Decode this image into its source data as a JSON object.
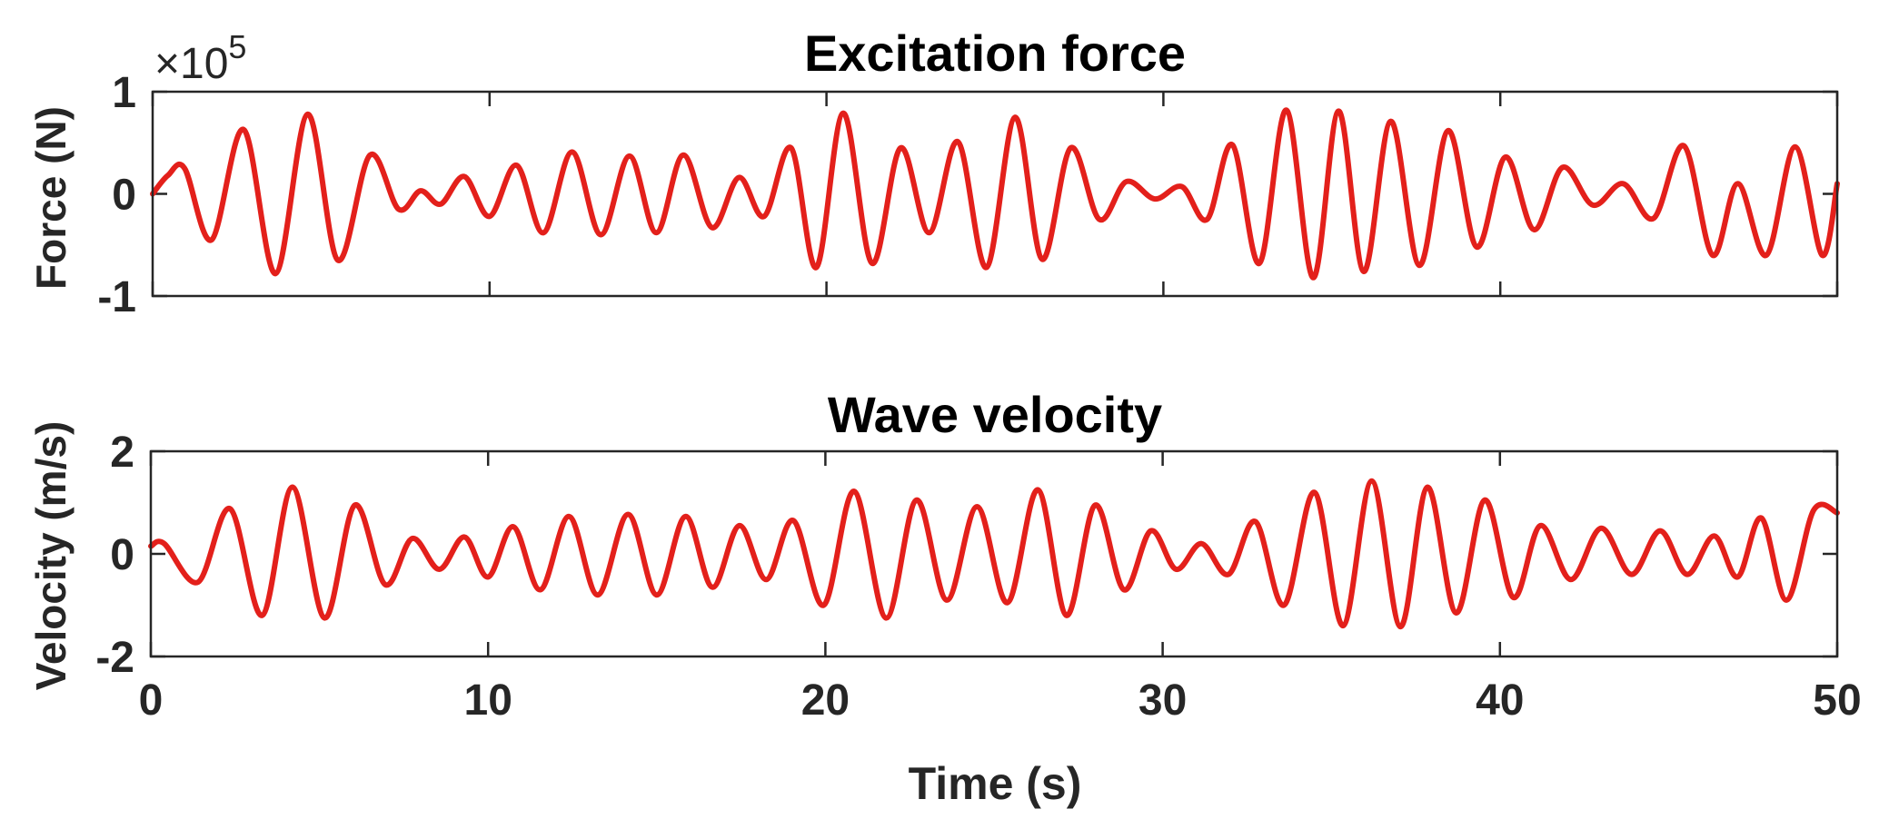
{
  "chart_data": [
    {
      "type": "line",
      "title": "Excitation force",
      "ylabel": "Force (N)",
      "xlabel": "",
      "exponent_label": "×10",
      "exponent_power": "5",
      "xlim": [
        0,
        50
      ],
      "ylim": [
        -1,
        1
      ],
      "xticks": [
        0,
        10,
        20,
        30,
        40,
        50
      ],
      "yticks": [
        -1,
        0,
        1
      ],
      "ytick_labels": [
        "-1",
        "0",
        "1"
      ],
      "grid": false,
      "line_color": "#e3201b",
      "series": [
        {
          "name": "Excitation force",
          "x": [
            0,
            0.45,
            0.95,
            1.75,
            2.7,
            3.65,
            4.6,
            5.5,
            6.45,
            7.3,
            7.95,
            8.55,
            9.25,
            10.0,
            10.8,
            11.6,
            12.45,
            13.3,
            14.15,
            14.95,
            15.75,
            16.6,
            17.4,
            18.15,
            18.95,
            19.7,
            20.5,
            21.35,
            22.2,
            23.05,
            23.9,
            24.75,
            25.6,
            26.4,
            27.25,
            28.1,
            28.9,
            29.75,
            30.55,
            31.3,
            32.05,
            32.85,
            33.65,
            34.45,
            35.2,
            35.95,
            36.75,
            37.6,
            38.45,
            39.3,
            40.15,
            41.0,
            41.85,
            42.75,
            43.65,
            44.55,
            45.45,
            46.3,
            47.05,
            47.9,
            48.75,
            49.55,
            50.0
          ],
          "y": [
            0.0,
            0.18,
            0.25,
            -0.45,
            0.63,
            -0.78,
            0.78,
            -0.65,
            0.38,
            -0.15,
            0.03,
            -0.1,
            0.17,
            -0.22,
            0.28,
            -0.38,
            0.41,
            -0.4,
            0.37,
            -0.38,
            0.38,
            -0.33,
            0.16,
            -0.22,
            0.45,
            -0.72,
            0.79,
            -0.68,
            0.45,
            -0.38,
            0.51,
            -0.72,
            0.75,
            -0.64,
            0.45,
            -0.25,
            0.12,
            -0.05,
            0.07,
            -0.25,
            0.48,
            -0.68,
            0.82,
            -0.82,
            0.81,
            -0.76,
            0.71,
            -0.7,
            0.62,
            -0.52,
            0.36,
            -0.35,
            0.26,
            -0.11,
            0.1,
            -0.24,
            0.47,
            -0.6,
            0.1,
            -0.6,
            0.46,
            -0.6,
            0.1
          ]
        }
      ]
    },
    {
      "type": "line",
      "title": "Wave velocity",
      "ylabel": "Velocity (m/s)",
      "xlabel": "Time (s)",
      "xlim": [
        0,
        50
      ],
      "ylim": [
        -2,
        2
      ],
      "xticks": [
        0,
        10,
        20,
        30,
        40,
        50
      ],
      "xtick_labels": [
        "0",
        "10",
        "20",
        "30",
        "40",
        "50"
      ],
      "yticks": [
        -2,
        0,
        2
      ],
      "ytick_labels": [
        "-2",
        "0",
        "2"
      ],
      "grid": false,
      "line_color": "#e3201b",
      "series": [
        {
          "name": "Wave velocity",
          "x": [
            0,
            0.4,
            1.4,
            2.35,
            3.3,
            4.2,
            5.15,
            6.05,
            6.95,
            7.75,
            8.55,
            9.3,
            10.0,
            10.75,
            11.55,
            12.4,
            13.25,
            14.15,
            15.0,
            15.85,
            16.65,
            17.45,
            18.25,
            19.05,
            19.95,
            20.85,
            21.8,
            22.7,
            23.6,
            24.5,
            25.4,
            26.3,
            27.15,
            28.0,
            28.85,
            29.65,
            30.4,
            31.15,
            31.95,
            32.75,
            33.6,
            34.5,
            35.35,
            36.2,
            37.05,
            37.85,
            38.7,
            39.55,
            40.4,
            41.2,
            42.1,
            43.0,
            43.9,
            44.75,
            45.55,
            46.35,
            47.05,
            47.75,
            48.5,
            49.3,
            50.0
          ],
          "y": [
            0.15,
            0.2,
            -0.55,
            0.88,
            -1.2,
            1.3,
            -1.25,
            0.95,
            -0.6,
            0.3,
            -0.3,
            0.33,
            -0.45,
            0.53,
            -0.7,
            0.73,
            -0.8,
            0.77,
            -0.8,
            0.73,
            -0.65,
            0.55,
            -0.5,
            0.65,
            -1.0,
            1.22,
            -1.25,
            1.05,
            -0.9,
            0.92,
            -0.95,
            1.25,
            -1.2,
            0.95,
            -0.7,
            0.45,
            -0.3,
            0.2,
            -0.4,
            0.63,
            -1.0,
            1.2,
            -1.4,
            1.42,
            -1.42,
            1.3,
            -1.15,
            1.05,
            -0.85,
            0.55,
            -0.5,
            0.5,
            -0.4,
            0.45,
            -0.4,
            0.35,
            -0.45,
            0.7,
            -0.9,
            0.85,
            0.8
          ]
        }
      ]
    }
  ]
}
